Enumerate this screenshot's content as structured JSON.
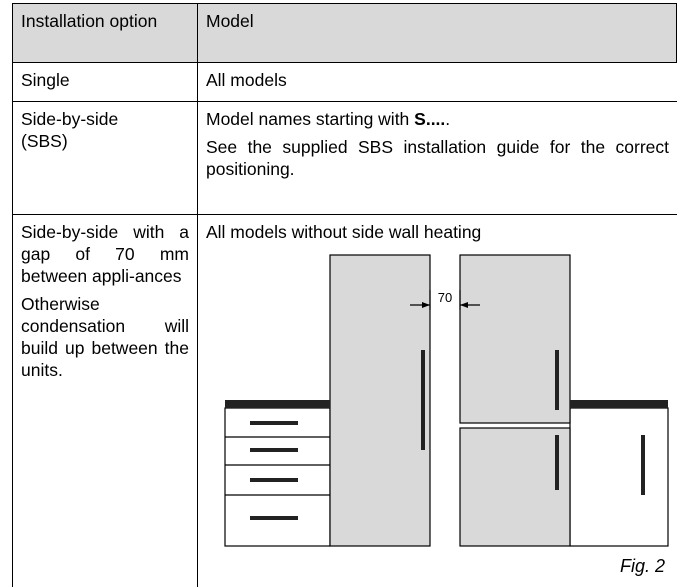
{
  "table": {
    "header": [
      "Installation option",
      "Model"
    ],
    "rows": [
      {
        "option": [
          "Single"
        ],
        "model": [
          "All models"
        ]
      },
      {
        "option": [
          "Side-by-side (SBS)"
        ],
        "model_prefix": "Model names starting with ",
        "model_bold": "S....",
        "model_suffix": ".",
        "model_note": "See the supplied SBS installation guide for the correct positioning."
      },
      {
        "option": [
          "Side-by-side with a gap of 70 mm between appli-ances",
          "Otherwise condensation will build up between the units."
        ],
        "model": [
          "All models without side wall heating"
        ],
        "figure_dimension": "70",
        "figure_caption": "Fig. 2"
      }
    ]
  }
}
